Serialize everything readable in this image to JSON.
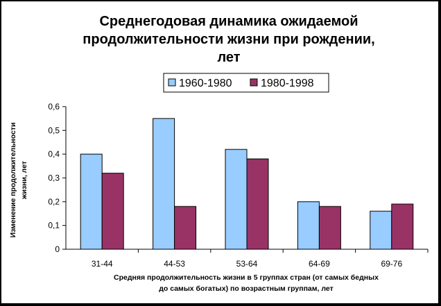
{
  "chart_data": {
    "type": "bar",
    "title_lines": [
      "Среднегодовая динамика ожидаемой",
      "продолжительности жизни при рождении,",
      "лет"
    ],
    "xlabel_lines": [
      "Средняя продолжительность жизни в 5 группах стран (от самых бедных",
      "до самых богатых) по возрастным группам, лет"
    ],
    "ylabel_lines": [
      "Изменение продолжительности",
      "жизни, лет"
    ],
    "categories": [
      "31-44",
      "44-53",
      "53-64",
      "64-69",
      "69-76"
    ],
    "series": [
      {
        "name": "1960-1980",
        "color": "#99CCFF",
        "values": [
          0.4,
          0.55,
          0.42,
          0.2,
          0.16
        ]
      },
      {
        "name": "1980-1998",
        "color": "#993366",
        "values": [
          0.32,
          0.18,
          0.38,
          0.18,
          0.19
        ]
      }
    ],
    "ylim": [
      0,
      0.6
    ],
    "yticks": [
      "0",
      "0,1",
      "0,2",
      "0,3",
      "0,4",
      "0,5",
      "0,6"
    ],
    "legend_position": "top-right",
    "grid": false
  }
}
